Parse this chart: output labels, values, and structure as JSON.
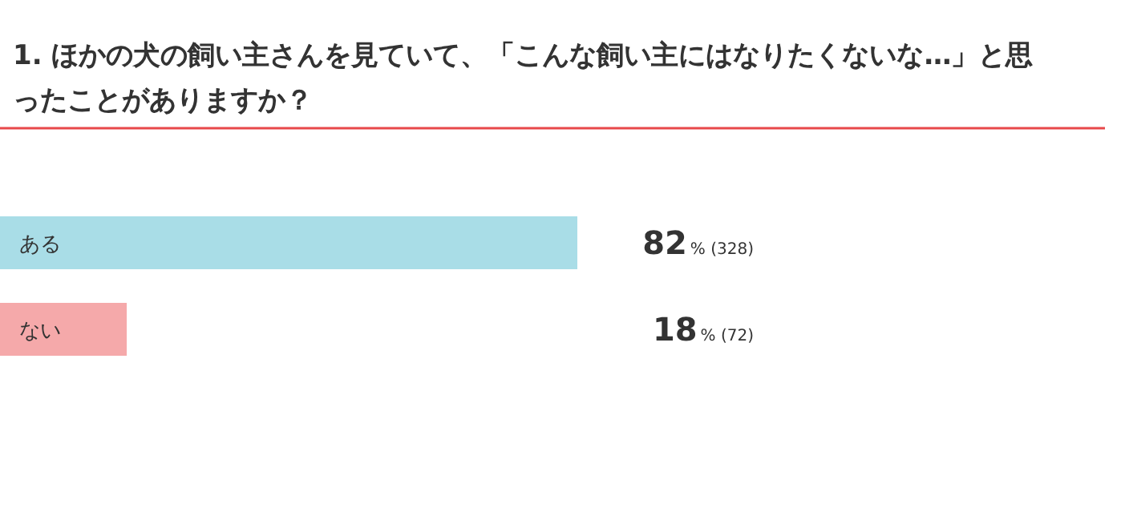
{
  "chart_data": {
    "type": "bar",
    "orientation": "horizontal",
    "title": "1. ほかの犬の飼い主さんを見ていて、「こんな飼い主にはなりたくないな…」と思ったことがありますか？",
    "categories": [
      "ある",
      "ない"
    ],
    "values": [
      82,
      18
    ],
    "colors": [
      "#a9dde7",
      "#f5a9aa"
    ],
    "value_labels": [
      "82% (328)",
      "18% (72)"
    ]
  }
}
